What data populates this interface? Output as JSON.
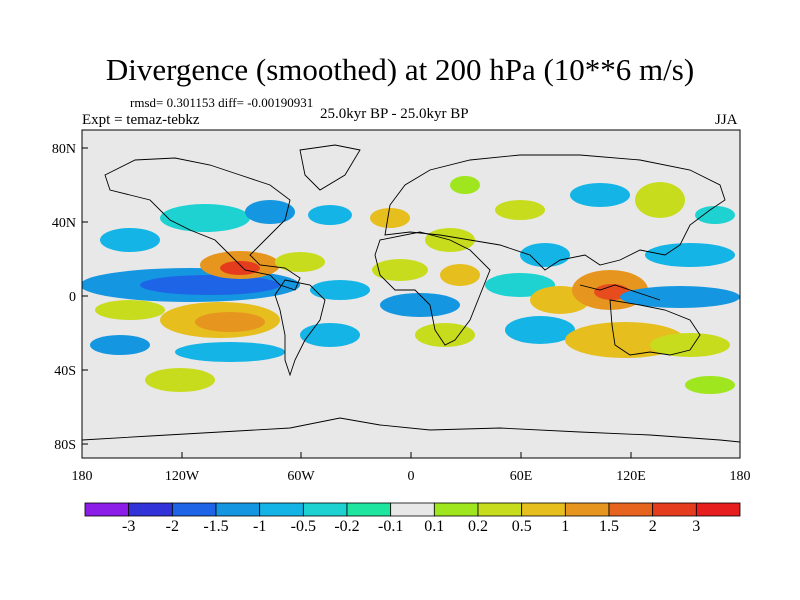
{
  "title": "Divergence (smoothed) at 200 hPa (10**6 m/s)",
  "stats": "rmsd= 0.301153 diff= -0.00190931",
  "expt": "Expt = temaz-tebkz",
  "period": "25.0kyr BP - 25.0kyr BP",
  "season": "JJA",
  "lat_ticks": [
    "80N",
    "40N",
    "0",
    "40S",
    "80S"
  ],
  "lon_ticks": [
    "180",
    "120W",
    "60W",
    "0",
    "60E",
    "120E",
    "180"
  ],
  "colorbar": {
    "labels": [
      "-3",
      "-2",
      "-1.5",
      "-1",
      "-0.5",
      "-0.2",
      "-0.1",
      "0.1",
      "0.2",
      "0.5",
      "1",
      "1.5",
      "2",
      "3"
    ],
    "colors": [
      "#8c1de8",
      "#3232d9",
      "#1e64e6",
      "#1496e0",
      "#14b4e6",
      "#1ed2d2",
      "#1ee6a0",
      "#e8e8e8",
      "#a0e61e",
      "#c8dc1e",
      "#e6be1e",
      "#e6961e",
      "#e6641e",
      "#e63c1e",
      "#e61e1e"
    ]
  },
  "colors": {
    "land_background": "#e8e8e8",
    "coastline": "#000000"
  }
}
